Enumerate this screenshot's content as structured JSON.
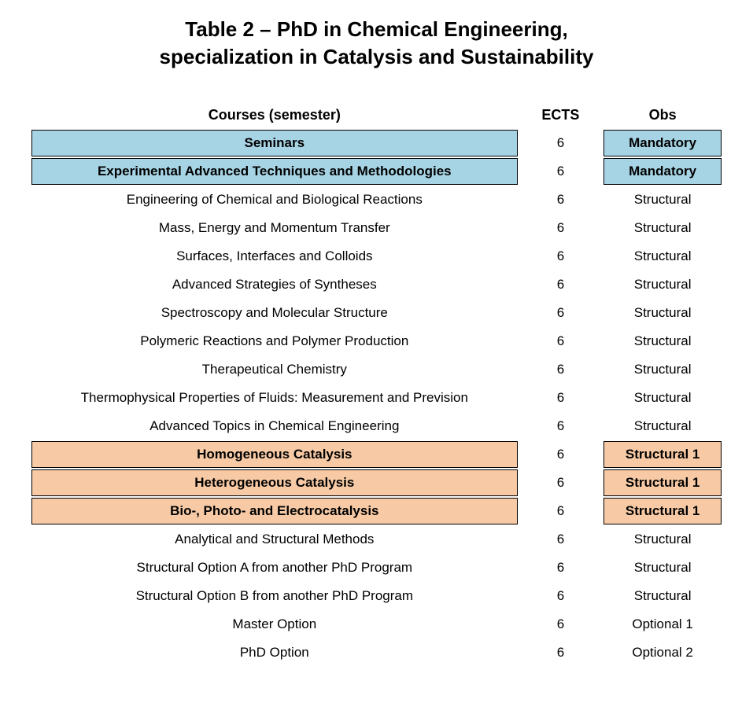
{
  "title_line1": "Table 2 – PhD in Chemical Engineering,",
  "title_line2": "specialization in Catalysis and Sustainability",
  "columns": {
    "course": "Courses (semester)",
    "ects": "ECTS",
    "obs": "Obs"
  },
  "highlight_colors": {
    "blue": "#a7d4e4",
    "orange": "#f7caa5",
    "border": "#000000"
  },
  "header_fontsize": 18,
  "body_fontsize": 17,
  "title_fontsize": 26,
  "rows": [
    {
      "course": "Seminars",
      "ects": "6",
      "obs": "Mandatory",
      "hl": "blue"
    },
    {
      "course": "Experimental Advanced Techniques and Methodologies",
      "ects": "6",
      "obs": "Mandatory",
      "hl": "blue"
    },
    {
      "course": "Engineering of Chemical and Biological Reactions",
      "ects": "6",
      "obs": "Structural",
      "hl": null
    },
    {
      "course": "Mass, Energy and Momentum Transfer",
      "ects": "6",
      "obs": "Structural",
      "hl": null
    },
    {
      "course": "Surfaces, Interfaces and Colloids",
      "ects": "6",
      "obs": "Structural",
      "hl": null
    },
    {
      "course": "Advanced Strategies of Syntheses",
      "ects": "6",
      "obs": "Structural",
      "hl": null
    },
    {
      "course": "Spectroscopy and Molecular Structure",
      "ects": "6",
      "obs": "Structural",
      "hl": null
    },
    {
      "course": "Polymeric Reactions and Polymer Production",
      "ects": "6",
      "obs": "Structural",
      "hl": null
    },
    {
      "course": "Therapeutical Chemistry",
      "ects": "6",
      "obs": "Structural",
      "hl": null
    },
    {
      "course": "Thermophysical Properties of Fluids: Measurement and Prevision",
      "ects": "6",
      "obs": "Structural",
      "hl": null
    },
    {
      "course": "Advanced Topics in Chemical Engineering",
      "ects": "6",
      "obs": "Structural",
      "hl": null
    },
    {
      "course": "Homogeneous Catalysis",
      "ects": "6",
      "obs": "Structural 1",
      "hl": "orange"
    },
    {
      "course": "Heterogeneous Catalysis",
      "ects": "6",
      "obs": "Structural 1",
      "hl": "orange"
    },
    {
      "course": "Bio-, Photo- and Electrocatalysis",
      "ects": "6",
      "obs": "Structural 1",
      "hl": "orange"
    },
    {
      "course": "Analytical and Structural Methods",
      "ects": "6",
      "obs": "Structural",
      "hl": null
    },
    {
      "course": "Structural Option A from another PhD Program",
      "ects": "6",
      "obs": "Structural",
      "hl": null
    },
    {
      "course": "Structural Option B from another PhD Program",
      "ects": "6",
      "obs": "Structural",
      "hl": null
    },
    {
      "course": "Master Option",
      "ects": "6",
      "obs": "Optional 1",
      "hl": null
    },
    {
      "course": "PhD Option",
      "ects": "6",
      "obs": "Optional 2",
      "hl": null
    }
  ]
}
